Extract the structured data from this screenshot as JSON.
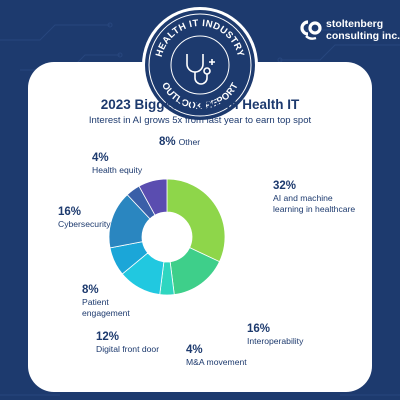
{
  "badge": {
    "top_text": "HEALTH IT INDUSTRY",
    "bottom_text": "OUTLOOK REPORT"
  },
  "brand": {
    "name_line1": "stoltenberg",
    "name_line2": "consulting inc.",
    "logo_icon": "sc-logo-icon"
  },
  "colors": {
    "background": "#1d3a6e",
    "card": "#ffffff",
    "text": "#1d3a6e"
  },
  "chart_data": {
    "type": "pie",
    "title": "2023 Biggest Topic in Health IT",
    "subtitle": "Interest in AI grows 5x from last year to earn top spot",
    "donut": true,
    "slices": [
      {
        "pct_label": "32%",
        "label": "AI and machine learning in healthcare",
        "value": 32,
        "color": "#8ed64a"
      },
      {
        "pct_label": "16%",
        "label": "Interoperability",
        "value": 16,
        "color": "#3ecf8a"
      },
      {
        "pct_label": "4%",
        "label": "M&A movement",
        "value": 4,
        "color": "#2fd6c0"
      },
      {
        "pct_label": "12%",
        "label": "Digital front door",
        "value": 12,
        "color": "#21c8e0"
      },
      {
        "pct_label": "8%",
        "label": "Patient engagement",
        "value": 8,
        "color": "#1ba6d8"
      },
      {
        "pct_label": "16%",
        "label": "Cybersecurity",
        "value": 16,
        "color": "#2a86c0"
      },
      {
        "pct_label": "4%",
        "label": "Health equity",
        "value": 4,
        "color": "#3a5fa8"
      },
      {
        "pct_label": "8%",
        "label": "Other",
        "value": 8,
        "color": "#5a4db0"
      }
    ]
  }
}
